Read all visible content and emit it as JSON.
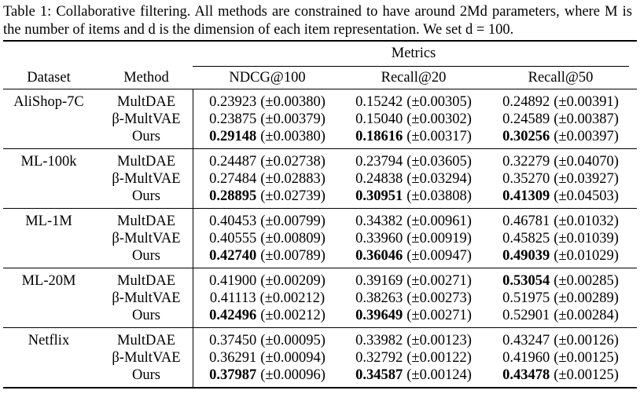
{
  "caption": "Table 1: Collaborative filtering. All methods are constrained to have around 2Md parameters, where M is the number of items and d is the dimension of each item representation. We set d = 100.",
  "header": {
    "metrics": "Metrics",
    "dataset": "Dataset",
    "method": "Method",
    "columns": [
      "NDCG@100",
      "Recall@20",
      "Recall@50"
    ]
  },
  "groups": [
    {
      "dataset": "AliShop-7C",
      "rows": [
        {
          "method": "MultDAE",
          "cells": [
            {
              "mean": "0.23923",
              "std": "(±0.00380)",
              "bold": false
            },
            {
              "mean": "0.15242",
              "std": "(±0.00305)",
              "bold": false
            },
            {
              "mean": "0.24892",
              "std": "(±0.00391)",
              "bold": false
            }
          ]
        },
        {
          "method": "β-MultVAE",
          "cells": [
            {
              "mean": "0.23875",
              "std": "(±0.00379)",
              "bold": false
            },
            {
              "mean": "0.15040",
              "std": "(±0.00302)",
              "bold": false
            },
            {
              "mean": "0.24589",
              "std": "(±0.00387)",
              "bold": false
            }
          ]
        },
        {
          "method": "Ours",
          "cells": [
            {
              "mean": "0.29148",
              "std": "(±0.00380)",
              "bold": true
            },
            {
              "mean": "0.18616",
              "std": "(±0.00317)",
              "bold": true
            },
            {
              "mean": "0.30256",
              "std": "(±0.00397)",
              "bold": true
            }
          ]
        }
      ]
    },
    {
      "dataset": "ML-100k",
      "rows": [
        {
          "method": "MultDAE",
          "cells": [
            {
              "mean": "0.24487",
              "std": "(±0.02738)",
              "bold": false
            },
            {
              "mean": "0.23794",
              "std": "(±0.03605)",
              "bold": false
            },
            {
              "mean": "0.32279",
              "std": "(±0.04070)",
              "bold": false
            }
          ]
        },
        {
          "method": "β-MultVAE",
          "cells": [
            {
              "mean": "0.27484",
              "std": "(±0.02883)",
              "bold": false
            },
            {
              "mean": "0.24838",
              "std": "(±0.03294)",
              "bold": false
            },
            {
              "mean": "0.35270",
              "std": "(±0.03927)",
              "bold": false
            }
          ]
        },
        {
          "method": "Ours",
          "cells": [
            {
              "mean": "0.28895",
              "std": "(±0.02739)",
              "bold": true
            },
            {
              "mean": "0.30951",
              "std": "(±0.03808)",
              "bold": true
            },
            {
              "mean": "0.41309",
              "std": "(±0.04503)",
              "bold": true
            }
          ]
        }
      ]
    },
    {
      "dataset": "ML-1M",
      "rows": [
        {
          "method": "MultDAE",
          "cells": [
            {
              "mean": "0.40453",
              "std": "(±0.00799)",
              "bold": false
            },
            {
              "mean": "0.34382",
              "std": "(±0.00961)",
              "bold": false
            },
            {
              "mean": "0.46781",
              "std": "(±0.01032)",
              "bold": false
            }
          ]
        },
        {
          "method": "β-MultVAE",
          "cells": [
            {
              "mean": "0.40555",
              "std": "(±0.00809)",
              "bold": false
            },
            {
              "mean": "0.33960",
              "std": "(±0.00919)",
              "bold": false
            },
            {
              "mean": "0.45825",
              "std": "(±0.01039)",
              "bold": false
            }
          ]
        },
        {
          "method": "Ours",
          "cells": [
            {
              "mean": "0.42740",
              "std": "(±0.00789)",
              "bold": true
            },
            {
              "mean": "0.36046",
              "std": "(±0.00947)",
              "bold": true
            },
            {
              "mean": "0.49039",
              "std": "(±0.01029)",
              "bold": true
            }
          ]
        }
      ]
    },
    {
      "dataset": "ML-20M",
      "rows": [
        {
          "method": "MultDAE",
          "cells": [
            {
              "mean": "0.41900",
              "std": "(±0.00209)",
              "bold": false
            },
            {
              "mean": "0.39169",
              "std": "(±0.00271)",
              "bold": false
            },
            {
              "mean": "0.53054",
              "std": "(±0.00285)",
              "bold": true
            }
          ]
        },
        {
          "method": "β-MultVAE",
          "cells": [
            {
              "mean": "0.41113",
              "std": "(±0.00212)",
              "bold": false
            },
            {
              "mean": "0.38263",
              "std": "(±0.00273)",
              "bold": false
            },
            {
              "mean": "0.51975",
              "std": "(±0.00289)",
              "bold": false
            }
          ]
        },
        {
          "method": "Ours",
          "cells": [
            {
              "mean": "0.42496",
              "std": "(±0.00212)",
              "bold": true
            },
            {
              "mean": "0.39649",
              "std": "(±0.00271)",
              "bold": true
            },
            {
              "mean": "0.52901",
              "std": "(±0.00284)",
              "bold": false
            }
          ]
        }
      ]
    },
    {
      "dataset": "Netflix",
      "rows": [
        {
          "method": "MultDAE",
          "cells": [
            {
              "mean": "0.37450",
              "std": "(±0.00095)",
              "bold": false
            },
            {
              "mean": "0.33982",
              "std": "(±0.00123)",
              "bold": false
            },
            {
              "mean": "0.43247",
              "std": "(±0.00126)",
              "bold": false
            }
          ]
        },
        {
          "method": "β-MultVAE",
          "cells": [
            {
              "mean": "0.36291",
              "std": "(±0.00094)",
              "bold": false
            },
            {
              "mean": "0.32792",
              "std": "(±0.00122)",
              "bold": false
            },
            {
              "mean": "0.41960",
              "std": "(±0.00125)",
              "bold": false
            }
          ]
        },
        {
          "method": "Ours",
          "cells": [
            {
              "mean": "0.37987",
              "std": "(±0.00096)",
              "bold": true
            },
            {
              "mean": "0.34587",
              "std": "(±0.00124)",
              "bold": true
            },
            {
              "mean": "0.43478",
              "std": "(±0.00125)",
              "bold": true
            }
          ]
        }
      ]
    }
  ]
}
